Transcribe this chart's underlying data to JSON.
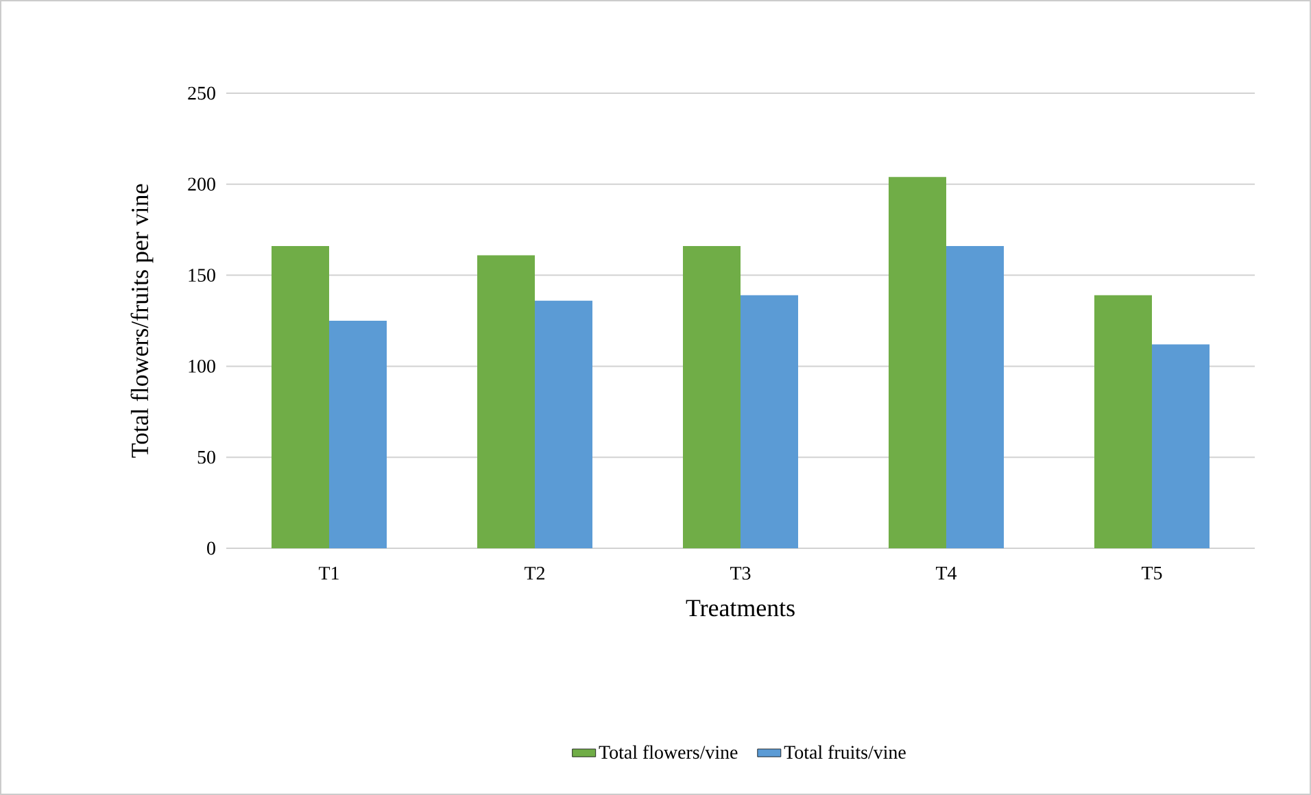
{
  "chart_data": {
    "type": "bar",
    "xlabel": "Treatments",
    "ylabel": "Total flowers/fruits per vine",
    "categories": [
      "T1",
      "T2",
      "T3",
      "T4",
      "T5"
    ],
    "series": [
      {
        "name": "Total flowers/vine",
        "color": "#70ad47",
        "values": [
          166,
          161,
          166,
          204,
          139
        ]
      },
      {
        "name": "Total fruits/vine",
        "color": "#5b9bd5",
        "values": [
          125,
          136,
          139,
          166,
          112
        ]
      }
    ],
    "ylim": [
      0,
      250
    ],
    "yticks": [
      0,
      50,
      100,
      150,
      200,
      250
    ],
    "grid": "y",
    "legend": "bottom"
  }
}
